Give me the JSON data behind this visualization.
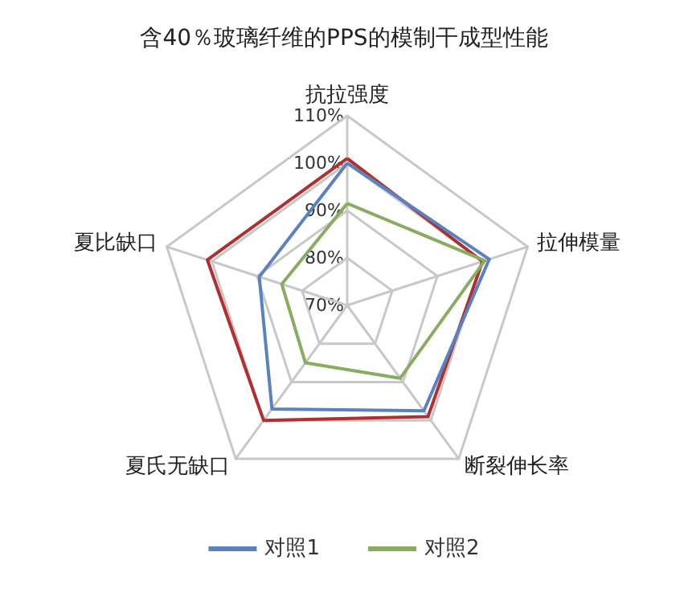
{
  "chart_data": {
    "type": "radar",
    "title": "含40％玻璃纤维的PPS的模制干成型性能",
    "categories": [
      "抗拉强度",
      "拉伸模量",
      "断裂伸长率",
      "夏氏无缺口",
      "夏比缺口"
    ],
    "ylim": [
      70,
      110
    ],
    "yticks": [
      {
        "value": 70,
        "label": "70%"
      },
      {
        "value": 80,
        "label": "80%"
      },
      {
        "value": 90,
        "label": "90%"
      },
      {
        "value": 100,
        "label": "100%"
      },
      {
        "value": 110,
        "label": "110%"
      }
    ],
    "grid": true,
    "legend": "bottom",
    "marker": "none",
    "line_style": "solid",
    "series": [
      {
        "color": "#b03030",
        "values": [
          101,
          100,
          99,
          100,
          101
        ]
      },
      {
        "name": "对照1",
        "color": "#5b82c0",
        "values": [
          100,
          101.5,
          97.5,
          97,
          89.5
        ]
      },
      {
        "name": "对照2",
        "color": "#8aab62",
        "values": [
          91.5,
          100.5,
          89,
          85,
          84.5
        ]
      }
    ]
  }
}
